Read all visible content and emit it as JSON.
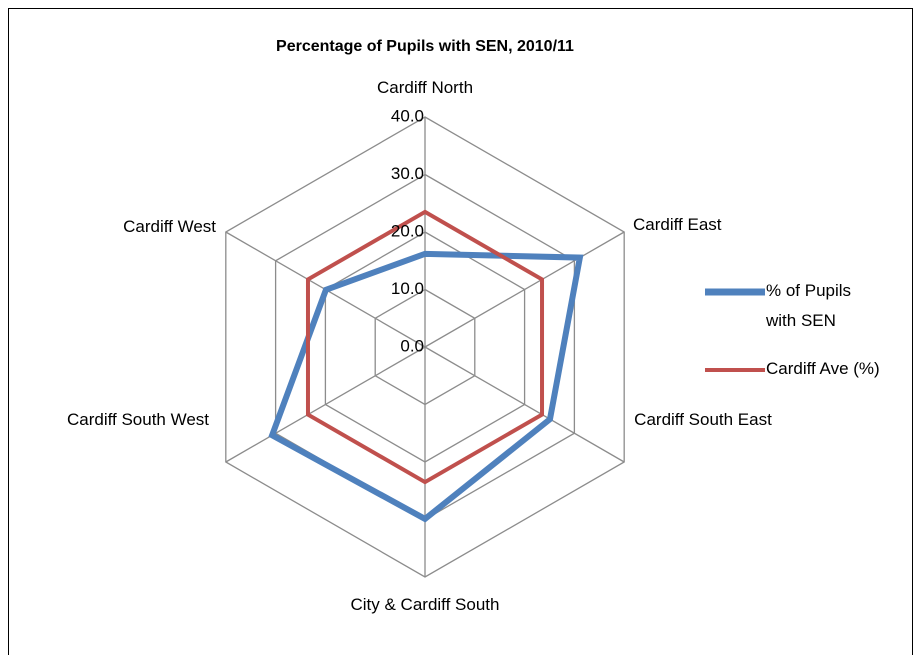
{
  "chart_data": {
    "type": "radar",
    "title": "Percentage of Pupils with SEN, 2010/11",
    "categories": [
      "Cardiff North",
      "Cardiff East",
      "Cardiff South East",
      "City & Cardiff South",
      "Cardiff South West",
      "Cardiff West"
    ],
    "series": [
      {
        "name": "% of Pupils with SEN",
        "color": "#4f81bd",
        "values": [
          16.2,
          31.1,
          25.1,
          29.9,
          30.7,
          19.9
        ]
      },
      {
        "name": "Cardiff Ave (%)",
        "color": "#c0504d",
        "values": [
          23.5,
          23.5,
          23.5,
          23.5,
          23.5,
          23.5
        ]
      }
    ],
    "ylim": [
      0,
      40
    ],
    "yticks": [
      {
        "value": 0,
        "label": "0.0"
      },
      {
        "value": 10,
        "label": "10.0"
      },
      {
        "value": 20,
        "label": "20.0"
      },
      {
        "value": 30,
        "label": "30.0"
      },
      {
        "value": 40,
        "label": "40.0"
      }
    ],
    "grid": true,
    "legend": "right"
  }
}
